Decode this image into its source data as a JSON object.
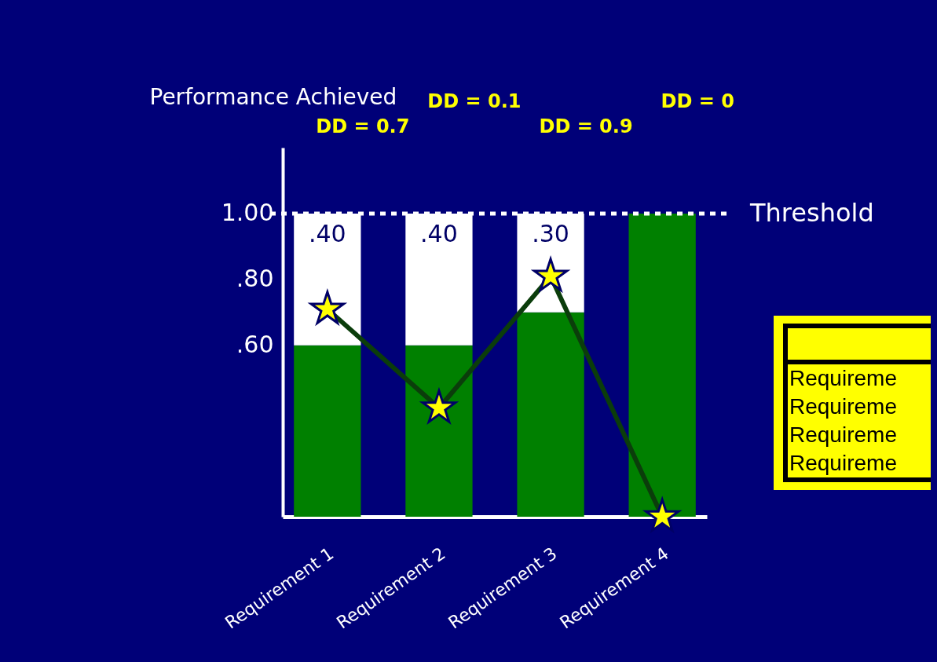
{
  "chart_data": {
    "type": "bar",
    "stacked": true,
    "ylabel": "Performance Achieved",
    "categories": [
      "Requirement 1",
      "Requirement 2",
      "Requirement 3",
      "Requirement 4"
    ],
    "series": [
      {
        "color": "#008000",
        "values": [
          0.6,
          0.6,
          0.7,
          1.0
        ]
      },
      {
        "color": "#ffffff",
        "values": [
          0.4,
          0.4,
          0.3,
          null
        ],
        "value_labels": [
          ".40",
          ".40",
          ".30",
          null
        ]
      },
      {
        "type": "line",
        "color": "#0b3d0b",
        "marker": "star",
        "values": [
          0.71,
          0.41,
          0.81,
          0.08
        ]
      }
    ],
    "ylim": [
      0.08,
      1.2
    ],
    "yticks": [
      {
        "value": 0.6,
        "label": ".60"
      },
      {
        "value": 0.8,
        "label": ".80"
      },
      {
        "value": 1.0,
        "label": "1.00"
      }
    ],
    "ref_lines": [
      {
        "axis": "y",
        "value": 1.0,
        "label": "Threshold",
        "color": "#ffffff",
        "line_style": "dotted"
      }
    ],
    "annotations": [
      "DD = 0.7",
      "DD = 0.1",
      "DD = 0.9",
      "DD = 0",
      "Requireme",
      "Requireme",
      "Requireme",
      "Requireme"
    ],
    "grid": false,
    "legend": false
  }
}
